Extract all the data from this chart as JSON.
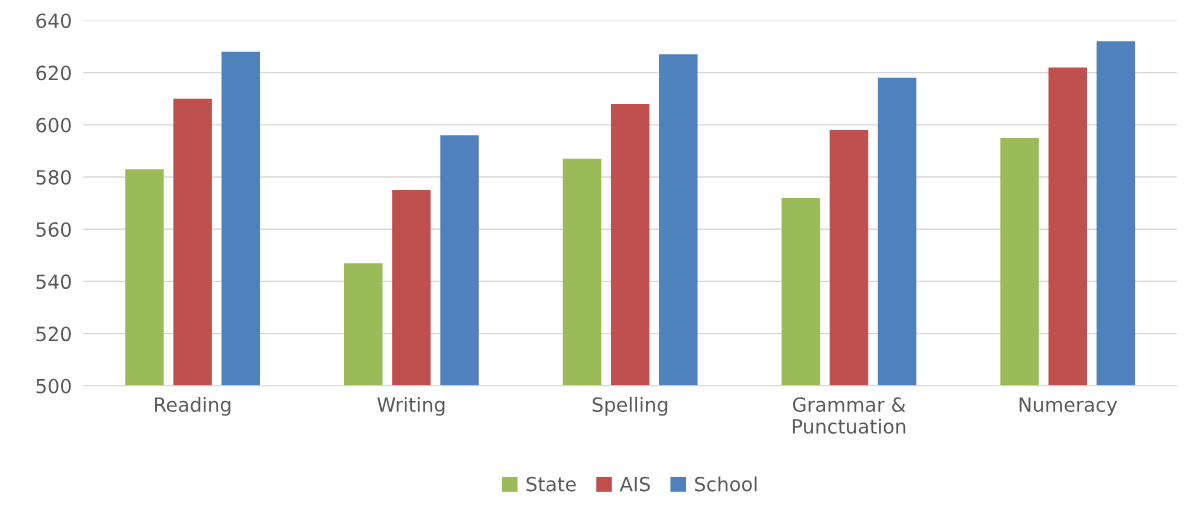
{
  "chart_data": {
    "type": "bar",
    "categories": [
      "Reading",
      "Writing",
      "Spelling",
      "Grammar &\nPunctuation",
      "Numeracy"
    ],
    "series": [
      {
        "name": "State",
        "color": "#9bbb59",
        "values": [
          583,
          547,
          587,
          572,
          595
        ]
      },
      {
        "name": "AIS",
        "color": "#c0504d",
        "values": [
          610,
          575,
          608,
          598,
          622
        ]
      },
      {
        "name": "School",
        "color": "#4f81bd",
        "values": [
          628,
          596,
          627,
          618,
          632
        ]
      }
    ],
    "ylim": [
      500,
      640
    ],
    "yticks": [
      500,
      520,
      540,
      560,
      580,
      600,
      620,
      640
    ],
    "grid": "y",
    "legend": "bottom"
  }
}
